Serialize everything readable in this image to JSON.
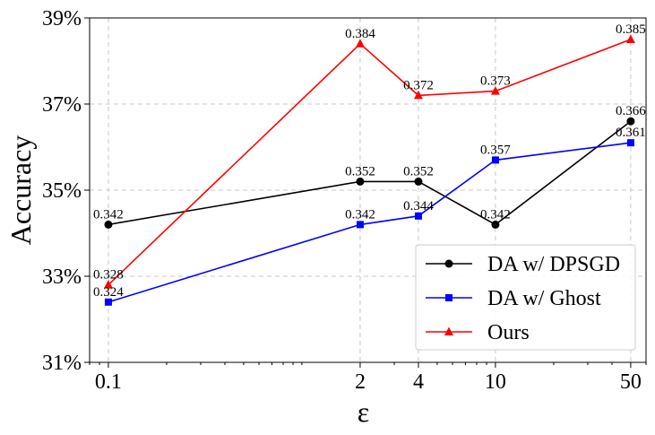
{
  "chart_data": {
    "type": "line",
    "title": "",
    "xlabel": "ε",
    "ylabel": "Accuracy",
    "x_scale": "log",
    "x": [
      0.1,
      2,
      4,
      10,
      50
    ],
    "x_tick_labels": [
      "0.1",
      "2",
      "4",
      "10",
      "50"
    ],
    "xlim": [
      0.08,
      60
    ],
    "ylim": [
      0.31,
      0.39
    ],
    "y_ticks": [
      0.31,
      0.33,
      0.35,
      0.37,
      0.39
    ],
    "y_tick_labels": [
      "31%",
      "33%",
      "35%",
      "37%",
      "39%"
    ],
    "grid": true,
    "legend_position": "lower-right",
    "series": [
      {
        "name": "DA w/ DPSGD",
        "color": "#000000",
        "marker": "circle",
        "values": [
          0.342,
          0.352,
          0.352,
          0.342,
          0.366
        ],
        "labels": [
          "0.342",
          "0.352",
          "0.352",
          "0.342",
          "0.366"
        ]
      },
      {
        "name": "DA w/ Ghost",
        "color": "#0000ff",
        "marker": "square",
        "values": [
          0.324,
          0.342,
          0.344,
          0.357,
          0.361
        ],
        "labels": [
          "0.324",
          "0.342",
          "0.344",
          "0.357",
          "0.361"
        ]
      },
      {
        "name": "Ours",
        "color": "#ff0000",
        "marker": "triangle",
        "values": [
          0.328,
          0.384,
          0.372,
          0.373,
          0.385
        ],
        "labels": [
          "0.328",
          "0.384",
          "0.372",
          "0.373",
          "0.385"
        ]
      }
    ]
  }
}
